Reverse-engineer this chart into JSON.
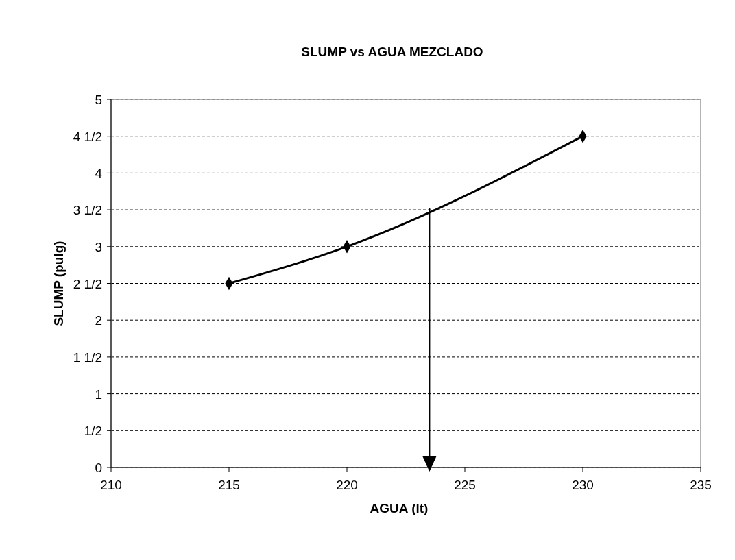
{
  "chart_data": {
    "type": "line",
    "title": "SLUMP  vs  AGUA MEZCLADO",
    "xlabel": "AGUA (lt)",
    "ylabel": "SLUMP (pulg)",
    "x": [
      215,
      220,
      230
    ],
    "series": [
      {
        "color": "#000000",
        "values": [
          2.5,
          3,
          4.5
        ]
      }
    ],
    "xlim": [
      210,
      235
    ],
    "xticks": [
      210,
      215,
      220,
      225,
      230,
      235
    ],
    "ylim": [
      0,
      5
    ],
    "yticks": [
      0,
      {
        "value": 0.5,
        "label": "1/2"
      },
      1,
      {
        "value": 1.5,
        "label": "1 1/2"
      },
      2,
      {
        "value": 2.5,
        "label": "2 1/2"
      },
      3,
      {
        "value": 3.5,
        "label": "3 1/2"
      },
      4,
      {
        "value": 4.5,
        "label": "4 1/2"
      },
      5
    ],
    "grid": "y",
    "marker": "diamond",
    "line_style": "solid",
    "ref_lines": [
      {
        "axis": "x",
        "value": 223.5,
        "color": "#000000"
      }
    ]
  }
}
